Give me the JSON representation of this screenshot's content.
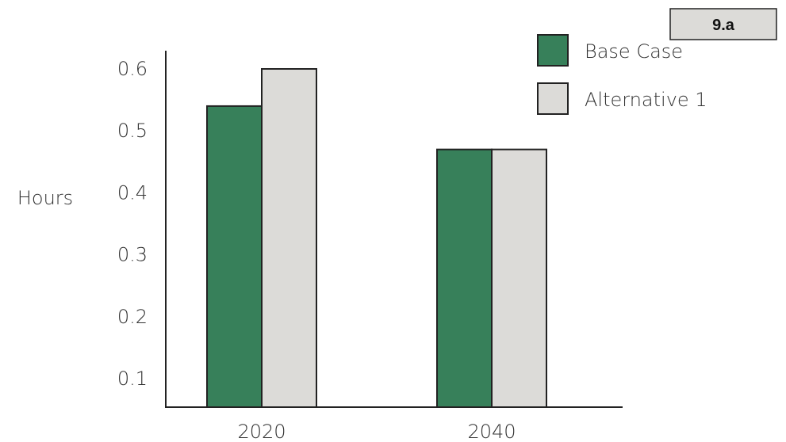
{
  "badge": {
    "label": "9.a"
  },
  "chart_data": {
    "type": "bar",
    "categories": [
      "2020",
      "2040"
    ],
    "series": [
      {
        "name": "Base Case",
        "values": [
          0.54,
          0.47
        ],
        "color": "#37805a"
      },
      {
        "name": "Alternative 1",
        "values": [
          0.6,
          0.47
        ],
        "color": "#dcdbd8"
      }
    ],
    "ylabel": "Hours",
    "yticks": [
      "0.1",
      "0.2",
      "0.3",
      "0.4",
      "0.5",
      "0.6"
    ],
    "ytick_values": [
      0.1,
      0.2,
      0.3,
      0.4,
      0.5,
      0.6
    ],
    "ylim": [
      0.054,
      0.6
    ],
    "legend_position": "top-right",
    "grid": false,
    "bar_outline_color": "#222222",
    "axis_color": "#222222"
  }
}
